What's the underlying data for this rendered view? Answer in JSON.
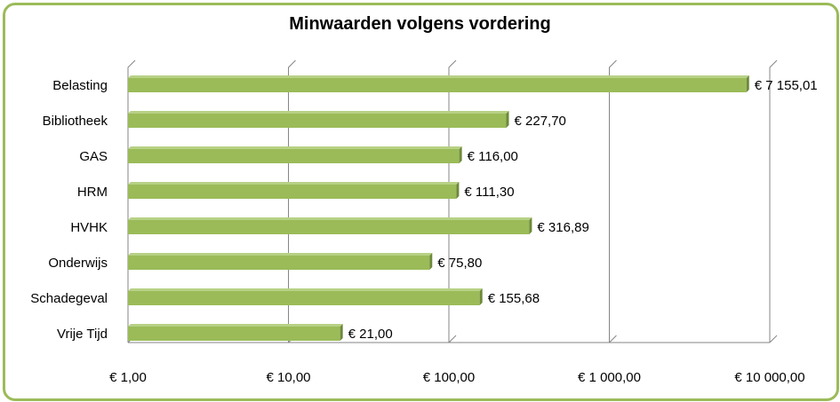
{
  "chart_data": {
    "type": "bar",
    "orientation": "horizontal",
    "title": "Minwaarden volgens vordering",
    "xlabel": "",
    "ylabel": "",
    "x_scale": "log",
    "xlim": [
      1,
      10000
    ],
    "grid": true,
    "legend": "none",
    "categories": [
      "Belasting",
      "Bibliotheek",
      "GAS",
      "HRM",
      "HVHK",
      "Onderwijs",
      "Schadegeval",
      "Vrije Tijd"
    ],
    "values": [
      7155.01,
      227.7,
      116.0,
      111.3,
      316.89,
      75.8,
      155.68,
      21.0
    ],
    "data_labels": [
      "€ 7 155,01",
      "€  227,70",
      "€  116,00",
      "€  111,30",
      "€  316,89",
      "€  75,80",
      "€  155,68",
      "€  21,00"
    ],
    "tick_values": [
      1,
      10,
      100,
      1000,
      10000
    ],
    "tick_labels": [
      "€  1,00",
      "€  10,00",
      "€  100,00",
      "€ 1 000,00",
      "€ 10 000,00"
    ],
    "colors": {
      "bar_front": "#9bbb59",
      "bar_top": "#b7d185",
      "bar_side": "#6d8a3a",
      "gridline": "#868686",
      "frame": "#9bbb59"
    }
  }
}
